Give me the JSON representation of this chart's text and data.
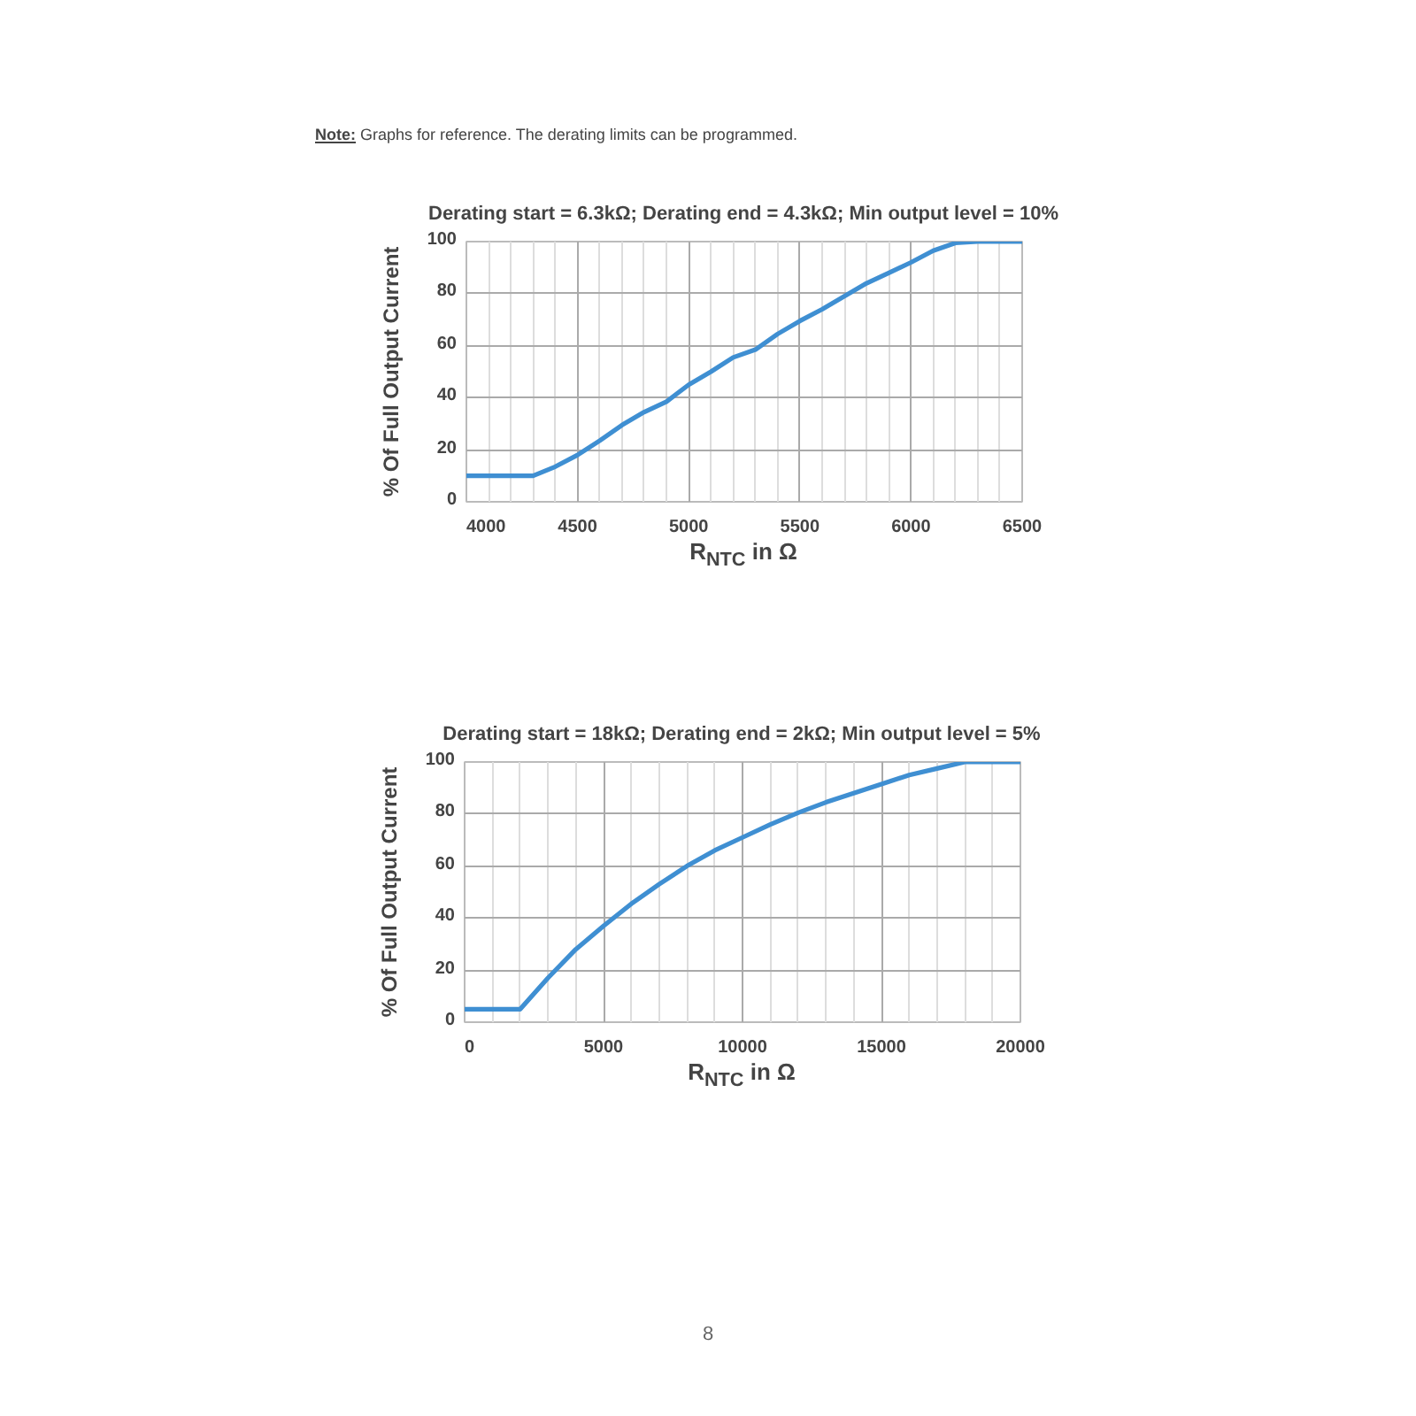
{
  "chart_data": [
    {
      "type": "line",
      "title": "Derating start = 6.3kΩ; Derating end = 4.3kΩ; Min output level = 10%",
      "xlabel": "R$_{NTC}$ in Ω",
      "ylabel": "% Of Full Output Current",
      "annotations": [
        "Note: Graphs for reference. The derating limits can be programmed."
      ],
      "x": [
        4000,
        4100,
        4200,
        4300,
        4400,
        4500,
        4600,
        4700,
        4800,
        4900,
        5000,
        5100,
        5200,
        5300,
        5400,
        5500,
        5600,
        5700,
        5800,
        5900,
        6000,
        6100,
        6200,
        6300,
        6500
      ],
      "series": [
        {
          "color": "#3f8fd2",
          "values": [
            10,
            10,
            10,
            10,
            13.5,
            18,
            23.5,
            29.5,
            34.5,
            38.5,
            45,
            50,
            55.5,
            58.5,
            64.5,
            69.5,
            74,
            79,
            84,
            88,
            92,
            96.5,
            99.5,
            100,
            100
          ]
        }
      ],
      "xlim": [
        4000,
        6500
      ],
      "xticks": [
        4000,
        4500,
        5000,
        5500,
        6000,
        6500
      ],
      "ylim": [
        0,
        100
      ],
      "yticks": [
        0,
        20,
        40,
        60,
        80,
        100
      ],
      "grid": true,
      "marker": "none",
      "line_style": "solid"
    },
    {
      "type": "line",
      "title": "Derating start = 18kΩ; Derating end = 2kΩ; Min output level = 5%",
      "xlabel": "R$_{NTC}$ in Ω",
      "ylabel": "% Of Full Output Current",
      "annotations": [
        "8"
      ],
      "x": [
        0,
        2000,
        3000,
        4000,
        5000,
        6000,
        7000,
        8000,
        9000,
        10000,
        11000,
        12000,
        13000,
        14000,
        15000,
        16000,
        17000,
        18000,
        20000
      ],
      "series": [
        {
          "color": "#3f8fd2",
          "values": [
            5,
            5,
            17,
            28,
            37,
            45.5,
            53,
            60,
            66,
            71,
            76,
            80.5,
            84.5,
            88,
            91.5,
            95,
            97.5,
            100,
            100
          ]
        }
      ],
      "xlim": [
        0,
        20000
      ],
      "xticks": [
        0,
        5000,
        10000,
        15000,
        20000
      ],
      "ylim": [
        0,
        100
      ],
      "yticks": [
        0,
        20,
        40,
        60,
        80,
        100
      ],
      "grid": true,
      "marker": "none",
      "line_style": "solid"
    }
  ]
}
